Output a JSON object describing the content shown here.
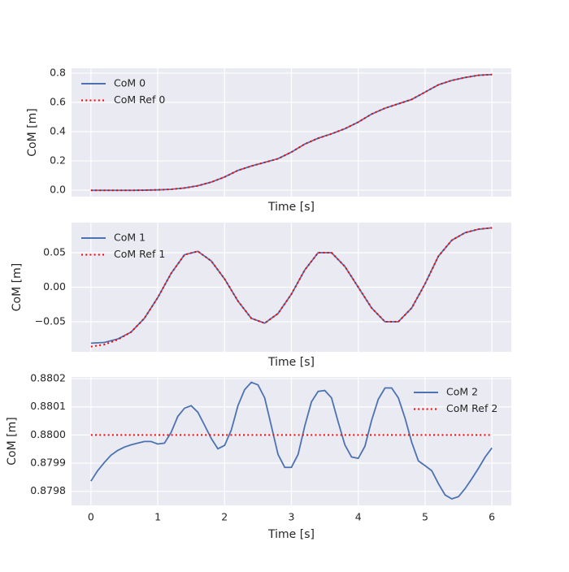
{
  "chart_data": [
    {
      "type": "line",
      "xlabel": "Time [s]",
      "ylabel": "CoM [m]",
      "legend": "upper left",
      "grid": true,
      "xtick_labels": false,
      "x": [
        0,
        0.2,
        0.4,
        0.6,
        0.8,
        1.0,
        1.2,
        1.4,
        1.6,
        1.8,
        2.0,
        2.2,
        2.4,
        2.6,
        2.8,
        3.0,
        3.2,
        3.4,
        3.6,
        3.8,
        4.0,
        4.2,
        4.4,
        4.6,
        4.8,
        5.0,
        5.2,
        5.4,
        5.6,
        5.8,
        6.0
      ],
      "series": [
        {
          "name": "CoM 0",
          "color": "#4c72b0",
          "style": "solid",
          "values": [
            -0.001,
            -0.001,
            -0.001,
            -0.001,
            0,
            0.002,
            0.006,
            0.015,
            0.03,
            0.055,
            0.09,
            0.135,
            0.165,
            0.19,
            0.215,
            0.26,
            0.315,
            0.355,
            0.385,
            0.42,
            0.465,
            0.52,
            0.56,
            0.59,
            0.62,
            0.67,
            0.72,
            0.75,
            0.77,
            0.785,
            0.79
          ]
        },
        {
          "name": "CoM Ref 0",
          "color": "#ff0000",
          "style": "dotted",
          "values": [
            -0.001,
            -0.001,
            -0.001,
            -0.001,
            0,
            0.002,
            0.006,
            0.015,
            0.03,
            0.055,
            0.09,
            0.135,
            0.165,
            0.19,
            0.215,
            0.26,
            0.315,
            0.355,
            0.385,
            0.42,
            0.465,
            0.52,
            0.56,
            0.59,
            0.62,
            0.67,
            0.72,
            0.75,
            0.77,
            0.785,
            0.79
          ]
        }
      ],
      "xlim": [
        -0.29,
        6.29
      ],
      "xticks": [
        0,
        1,
        2,
        3,
        4,
        5,
        6
      ],
      "ylim": [
        -0.044,
        0.833
      ],
      "yticks": [
        {
          "value": 0,
          "label": "0.0"
        },
        0.2,
        0.4,
        0.6,
        0.8
      ]
    },
    {
      "type": "line",
      "xlabel": "Time [s]",
      "ylabel": "CoM [m]",
      "legend": "upper left",
      "grid": true,
      "xtick_labels": false,
      "x": [
        0,
        0.2,
        0.4,
        0.6,
        0.8,
        1.0,
        1.2,
        1.4,
        1.6,
        1.8,
        2.0,
        2.2,
        2.4,
        2.6,
        2.8,
        3.0,
        3.2,
        3.4,
        3.6,
        3.8,
        4.0,
        4.2,
        4.4,
        4.6,
        4.8,
        5.0,
        5.2,
        5.4,
        5.6,
        5.8,
        6.0
      ],
      "series": [
        {
          "name": "CoM 1",
          "color": "#4c72b0",
          "style": "solid",
          "values": [
            -0.081,
            -0.08,
            -0.075,
            -0.065,
            -0.045,
            -0.015,
            0.02,
            0.047,
            0.052,
            0.038,
            0.012,
            -0.02,
            -0.045,
            -0.052,
            -0.038,
            -0.01,
            0.025,
            0.05,
            0.05,
            0.03,
            0,
            -0.03,
            -0.05,
            -0.05,
            -0.03,
            0.005,
            0.045,
            0.068,
            0.079,
            0.084,
            0.086
          ]
        },
        {
          "name": "CoM Ref 1",
          "color": "#ff0000",
          "style": "dotted",
          "values": [
            -0.086,
            -0.083,
            -0.076,
            -0.065,
            -0.045,
            -0.015,
            0.02,
            0.047,
            0.052,
            0.038,
            0.012,
            -0.02,
            -0.045,
            -0.052,
            -0.038,
            -0.01,
            0.025,
            0.05,
            0.05,
            0.03,
            0,
            -0.03,
            -0.05,
            -0.05,
            -0.03,
            0.005,
            0.045,
            0.068,
            0.079,
            0.084,
            0.086
          ]
        }
      ],
      "xlim": [
        -0.29,
        6.29
      ],
      "xticks": [
        0,
        1,
        2,
        3,
        4,
        5,
        6
      ],
      "ylim": [
        -0.0935,
        0.0935
      ],
      "yticks": [
        {
          "value": -0.05,
          "label": "−0.05"
        },
        {
          "value": 0,
          "label": "0.00"
        },
        0.05
      ]
    },
    {
      "type": "line",
      "xlabel": "Time [s]",
      "ylabel": "CoM [m]",
      "legend": "upper right",
      "grid": true,
      "xtick_labels": true,
      "x": [
        0,
        0.1,
        0.2,
        0.3,
        0.4,
        0.5,
        0.6,
        0.7,
        0.8,
        0.9,
        1.0,
        1.1,
        1.2,
        1.3,
        1.4,
        1.5,
        1.6,
        1.7,
        1.8,
        1.9,
        2.0,
        2.1,
        2.2,
        2.3,
        2.4,
        2.5,
        2.6,
        2.7,
        2.8,
        2.9,
        3.0,
        3.1,
        3.2,
        3.3,
        3.4,
        3.5,
        3.6,
        3.7,
        3.8,
        3.9,
        4.0,
        4.1,
        4.2,
        4.3,
        4.4,
        4.5,
        4.6,
        4.7,
        4.8,
        4.9,
        5.0,
        5.1,
        5.2,
        5.3,
        5.4,
        5.5,
        5.6,
        5.7,
        5.8,
        5.9,
        6.0
      ],
      "series": [
        {
          "name": "CoM 2",
          "color": "#4c72b0",
          "style": "solid",
          "values": [
            0.879836,
            0.879873,
            0.879902,
            0.879928,
            0.879945,
            0.879957,
            0.879965,
            0.879971,
            0.879977,
            0.879977,
            0.879968,
            0.879971,
            0.880009,
            0.880066,
            0.880095,
            0.880104,
            0.880081,
            0.880035,
            0.879988,
            0.879951,
            0.879963,
            0.880017,
            0.880104,
            0.880161,
            0.880187,
            0.880178,
            0.880132,
            0.880032,
            0.879931,
            0.879885,
            0.879885,
            0.879931,
            0.880032,
            0.880118,
            0.880155,
            0.880158,
            0.880132,
            0.880046,
            0.879965,
            0.879922,
            0.879917,
            0.87996,
            0.880052,
            0.880127,
            0.880167,
            0.880167,
            0.880132,
            0.88006,
            0.879974,
            0.879908,
            0.879891,
            0.879873,
            0.879827,
            0.879787,
            0.879773,
            0.879781,
            0.87981,
            0.879845,
            0.879882,
            0.879922,
            0.879954
          ]
        },
        {
          "name": "CoM Ref 2",
          "color": "#ff0000",
          "style": "dotted",
          "values": [
            0.88,
            0.88,
            0.88,
            0.88,
            0.88,
            0.88,
            0.88,
            0.88,
            0.88,
            0.88,
            0.88,
            0.88,
            0.88,
            0.88,
            0.88,
            0.88,
            0.88,
            0.88,
            0.88,
            0.88,
            0.88,
            0.88,
            0.88,
            0.88,
            0.88,
            0.88,
            0.88,
            0.88,
            0.88,
            0.88,
            0.88,
            0.88,
            0.88,
            0.88,
            0.88,
            0.88,
            0.88,
            0.88,
            0.88,
            0.88,
            0.88,
            0.88,
            0.88,
            0.88,
            0.88,
            0.88,
            0.88,
            0.88,
            0.88,
            0.88,
            0.88,
            0.88,
            0.88,
            0.88,
            0.88,
            0.88,
            0.88,
            0.88,
            0.88,
            0.88,
            0.88
          ]
        }
      ],
      "xlim": [
        -0.29,
        6.29
      ],
      "xticks": [
        0,
        1,
        2,
        3,
        4,
        5,
        6
      ],
      "ylim": [
        0.87975,
        0.880206
      ],
      "yticks": [
        0.8798,
        0.8799,
        {
          "value": 0.88,
          "label": "0.8800"
        },
        0.8801,
        0.8802
      ]
    }
  ]
}
